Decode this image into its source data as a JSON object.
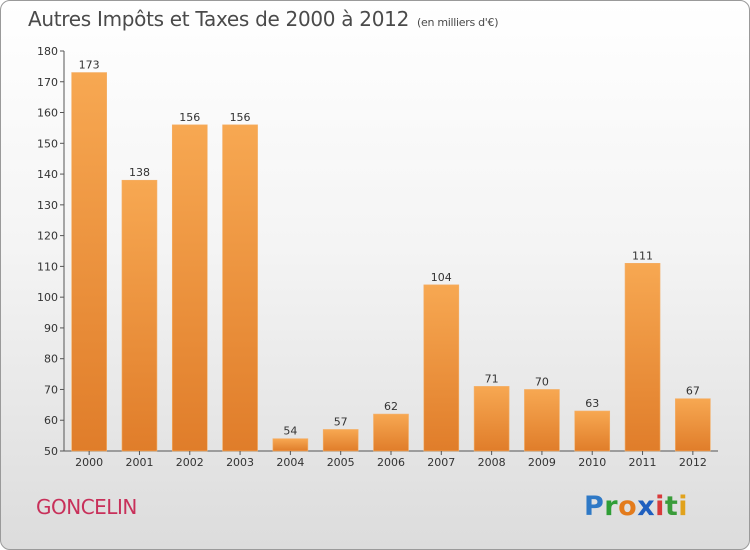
{
  "title": "Autres Impôts et Taxes de 2000 à 2012",
  "unit": "(en milliers d'€)",
  "commune": "GONCELIN",
  "logo": {
    "text": "Proxiti",
    "letters": [
      "P",
      "r",
      "o",
      "x",
      "i",
      "t",
      "i"
    ],
    "colors": [
      "#2f79c6",
      "#2f9e36",
      "#e37b1c",
      "#1f5fbf",
      "#d83a3a",
      "#3a9c3a",
      "#e1a21c"
    ]
  },
  "colors": {
    "bar_light": "#f7a852",
    "bar_dark": "#e07d2a",
    "axis": "#555555",
    "grid": "#999999"
  },
  "chart_data": {
    "type": "bar",
    "categories": [
      "2000",
      "2001",
      "2002",
      "2003",
      "2004",
      "2005",
      "2006",
      "2007",
      "2008",
      "2009",
      "2010",
      "2011",
      "2012"
    ],
    "values": [
      173,
      138,
      156,
      156,
      54,
      57,
      62,
      104,
      71,
      70,
      63,
      111,
      67
    ],
    "ylim": [
      50,
      180
    ],
    "yticks": [
      50,
      60,
      70,
      80,
      90,
      100,
      110,
      120,
      130,
      140,
      150,
      160,
      170,
      180
    ],
    "title": "Autres Impôts et Taxes de 2000 à 2012",
    "xlabel": "",
    "ylabel": "",
    "grid": false
  }
}
